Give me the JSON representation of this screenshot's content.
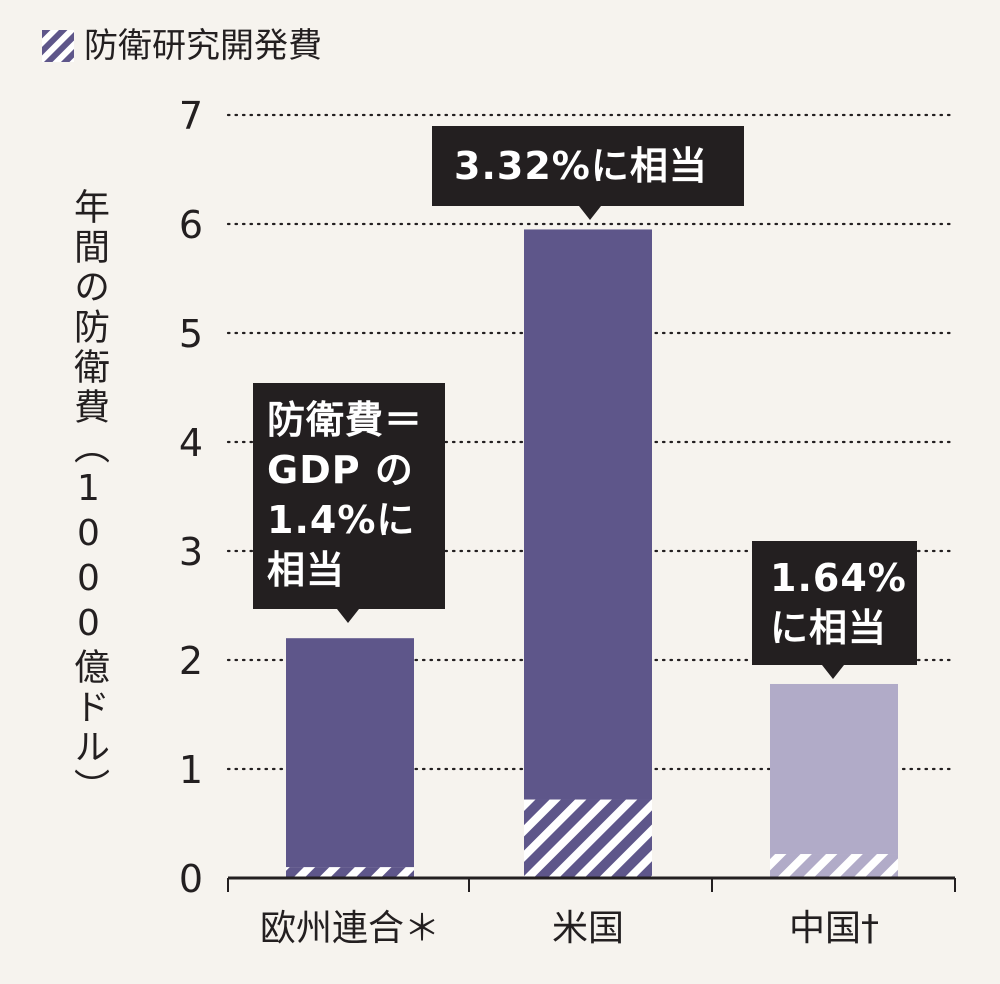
{
  "legend": {
    "label": "防衛研究開発費",
    "swatch_color": "#5e568a"
  },
  "colors": {
    "eu": "#5e568a",
    "us": "#5e568a",
    "china": "#b1abc8",
    "hatch_light": "#ffffff",
    "callout_bg": "#231f20",
    "background": "#f6f3ee"
  },
  "callouts": [
    {
      "text": "防衛費＝\nGDP の\n1.4%に\n相当"
    },
    {
      "text": "3.32%に相当"
    },
    {
      "text": "1.64%\nに相当"
    }
  ],
  "chart_data": {
    "type": "bar",
    "stacked": true,
    "categories": [
      "欧州連合＊",
      "米国",
      "中国†"
    ],
    "series": [
      {
        "name": "防衛研究開発費",
        "values": [
          0.1,
          0.72,
          0.22
        ],
        "pattern": "hatched"
      },
      {
        "values": [
          2.1,
          5.23,
          1.56
        ],
        "pattern": "solid"
      }
    ],
    "totals": [
      2.2,
      5.95,
      1.78
    ],
    "ylabel": "年間の防衛費（1000億ドル）",
    "ylim": [
      0,
      7
    ],
    "yticks": [
      0,
      1,
      2,
      3,
      4,
      5,
      6,
      7
    ],
    "grid": "dotted-horizontal",
    "legend_position": "top-left"
  }
}
